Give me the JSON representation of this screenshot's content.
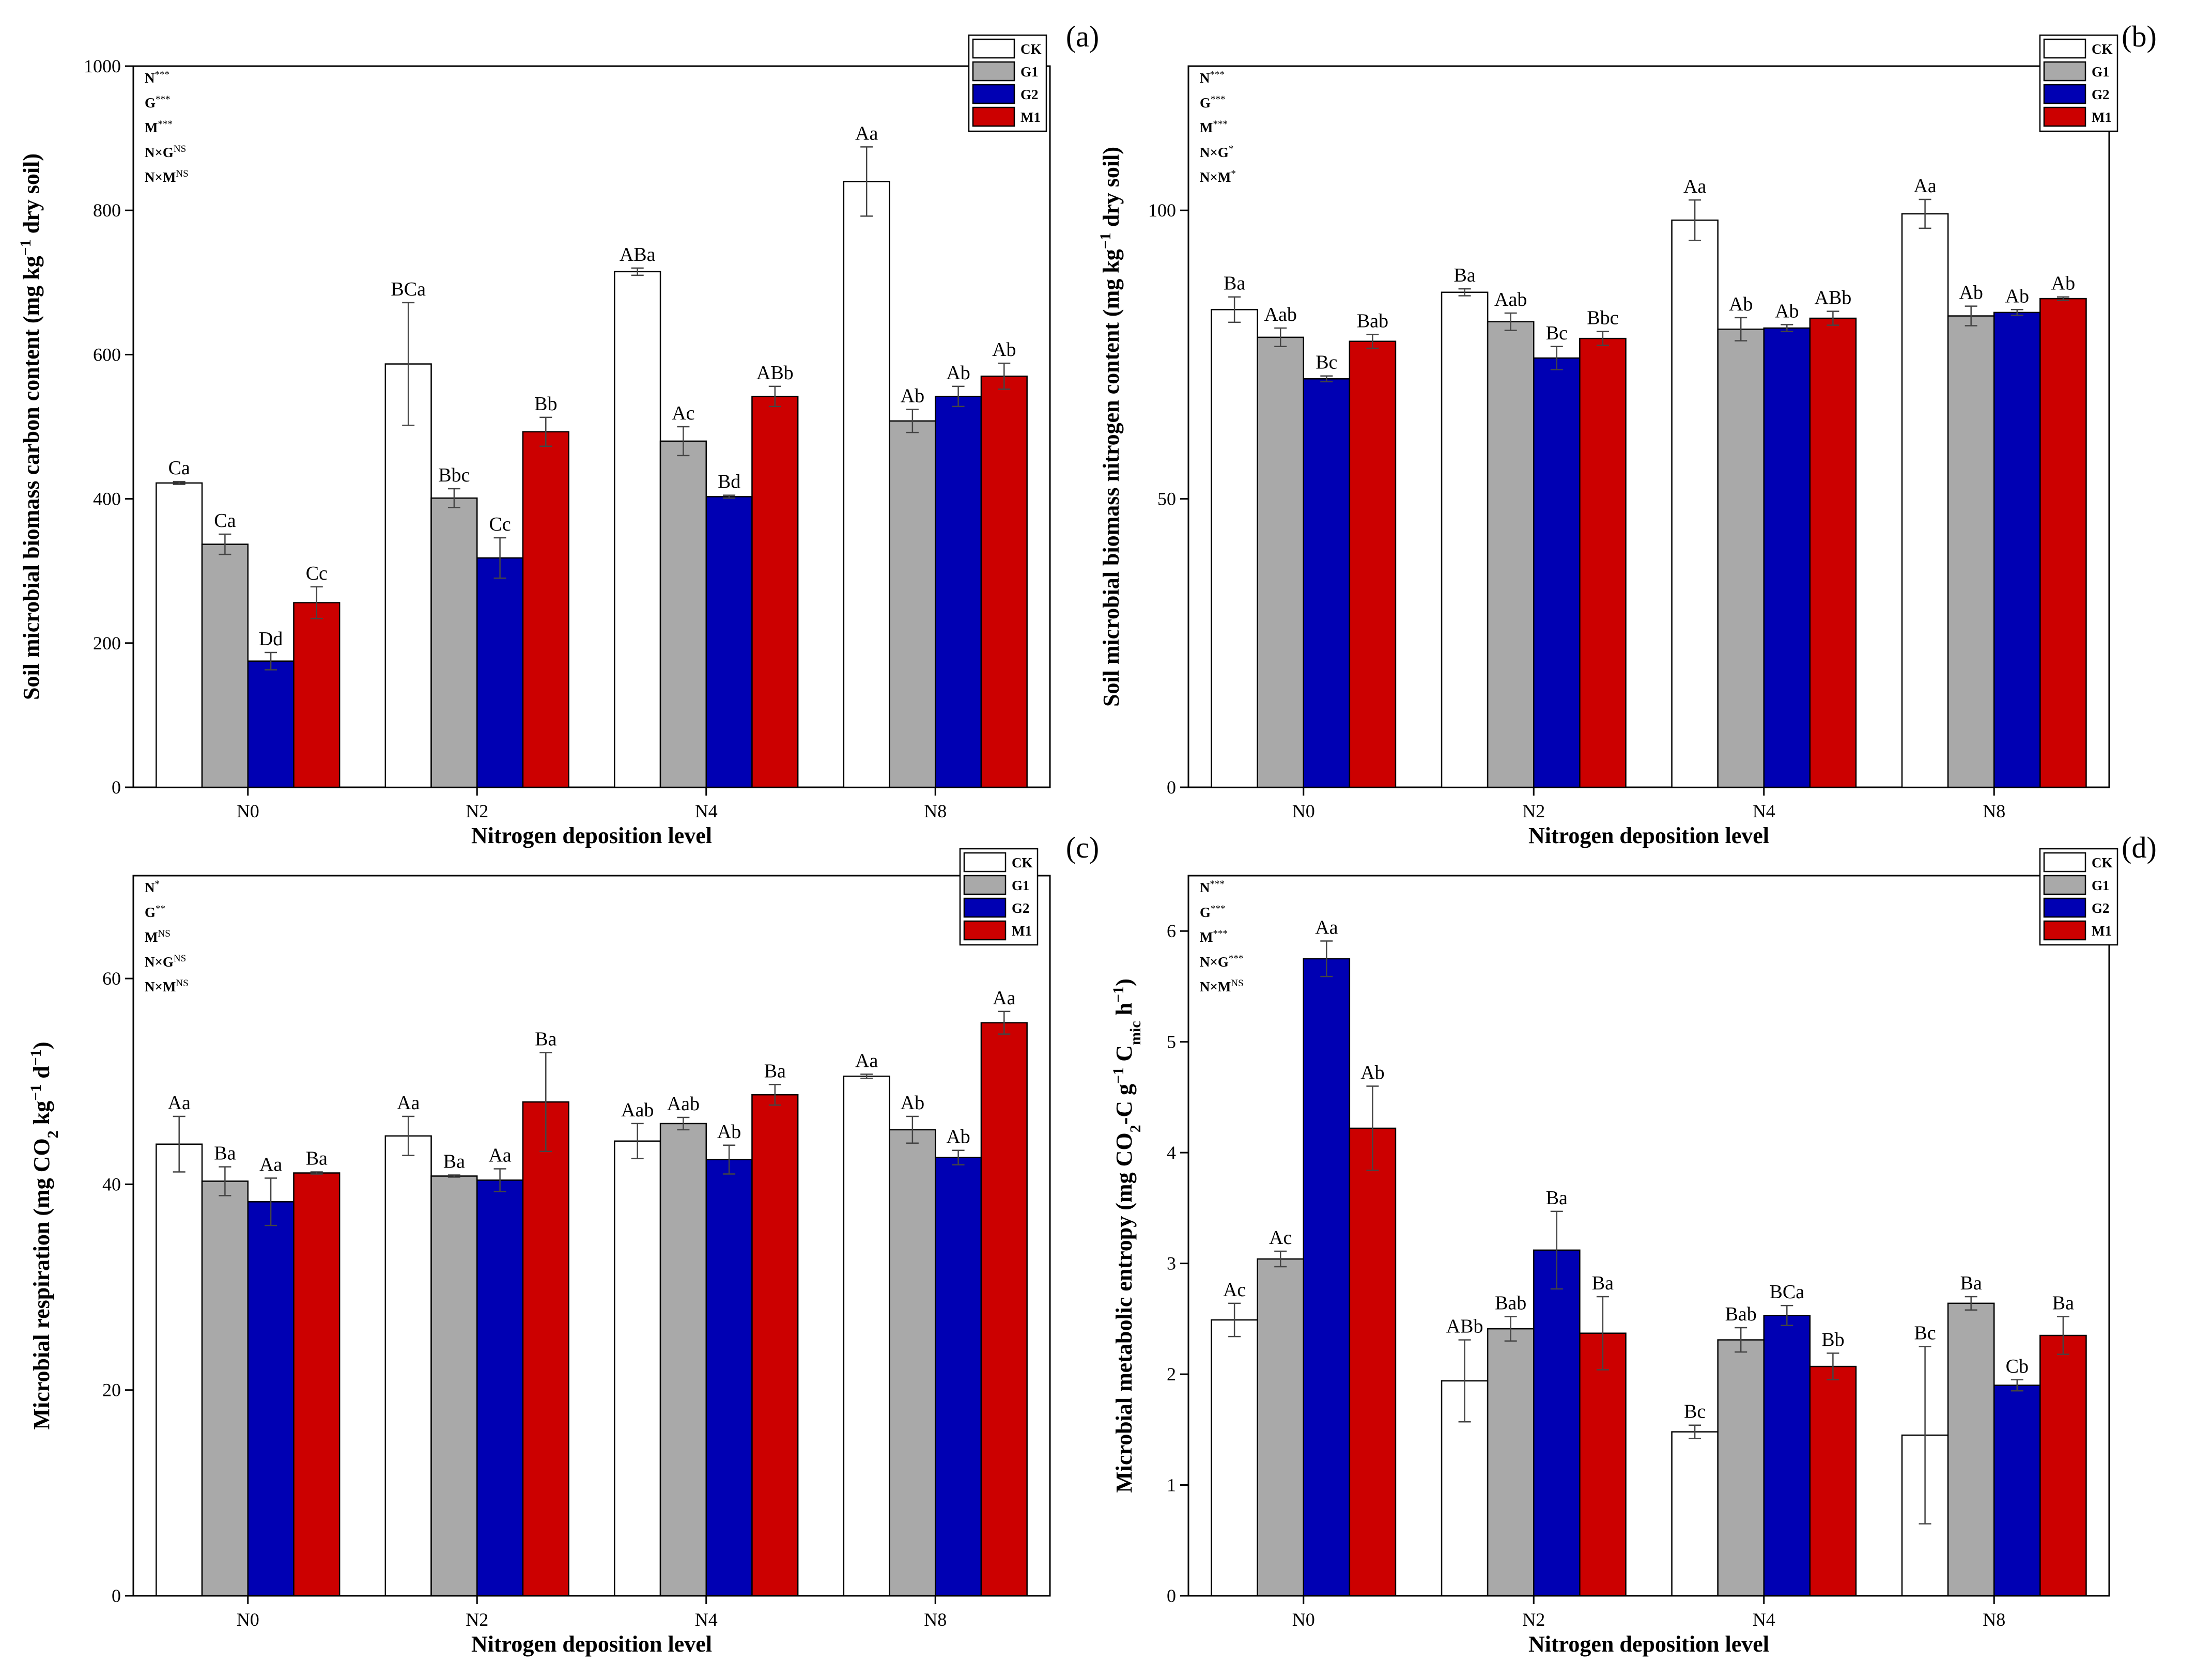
{
  "colors": {
    "CK": "#ffffff",
    "G1": "#a9a9a9",
    "G2": "#0000b3",
    "M1": "#cc0000"
  },
  "legend": [
    "CK",
    "G1",
    "G2",
    "M1"
  ],
  "chart_data": [
    {
      "panel": "(a)",
      "type": "bar",
      "xlabel": "Nitrogen deposition level",
      "ylabel": "Soil microbial biomass carbon content (mg kg−1 dry soil)",
      "ylim": [
        0,
        1000
      ],
      "yticks": [
        0,
        200,
        400,
        600,
        800,
        1000
      ],
      "categories": [
        "N0",
        "N2",
        "N4",
        "N8"
      ],
      "stats": [
        {
          "term": "N",
          "sig": "***"
        },
        {
          "term": "G",
          "sig": "***"
        },
        {
          "term": "M",
          "sig": "***"
        },
        {
          "term": "N×G",
          "sig": "NS"
        },
        {
          "term": "N×M",
          "sig": "NS"
        }
      ],
      "series": [
        {
          "name": "CK",
          "values": [
            422,
            587,
            715,
            840
          ],
          "errors": [
            2,
            85,
            5,
            48
          ],
          "letters": [
            "Ca",
            "BCa",
            "ABa",
            "Aa"
          ]
        },
        {
          "name": "G1",
          "values": [
            337,
            401,
            480,
            508
          ],
          "errors": [
            14,
            13,
            20,
            16
          ],
          "letters": [
            "Ca",
            "Bbc",
            "Ac",
            "Ab"
          ]
        },
        {
          "name": "G2",
          "values": [
            175,
            318,
            403,
            542
          ],
          "errors": [
            12,
            28,
            2,
            14
          ],
          "letters": [
            "Dd",
            "Cc",
            "Bd",
            "Ab"
          ]
        },
        {
          "name": "M1",
          "values": [
            256,
            493,
            542,
            570
          ],
          "errors": [
            22,
            20,
            14,
            18
          ],
          "letters": [
            "Cc",
            "Bb",
            "ABb",
            "Ab"
          ]
        }
      ]
    },
    {
      "panel": "(b)",
      "type": "bar",
      "xlabel": "Nitrogen deposition level",
      "ylabel": "Soil microbial biomass nitrogen content (mg kg−1 dry soil)",
      "ylim": [
        0,
        125
      ],
      "yticks": [
        0,
        50,
        100
      ],
      "categories": [
        "N0",
        "N2",
        "N4",
        "N8"
      ],
      "stats": [
        {
          "term": "N",
          "sig": "***"
        },
        {
          "term": "G",
          "sig": "***"
        },
        {
          "term": "M",
          "sig": "***"
        },
        {
          "term": "N×G",
          "sig": "*"
        },
        {
          "term": "N×M",
          "sig": "*"
        }
      ],
      "series": [
        {
          "name": "CK",
          "values": [
            82.8,
            85.8,
            98.3,
            99.4
          ],
          "errors": [
            2.2,
            0.6,
            3.5,
            2.5
          ],
          "letters": [
            "Ba",
            "Ba",
            "Aa",
            "Aa"
          ]
        },
        {
          "name": "G1",
          "values": [
            78.0,
            80.7,
            79.4,
            81.7
          ],
          "errors": [
            1.6,
            1.5,
            2.0,
            1.7
          ],
          "letters": [
            "Aab",
            "Aab",
            "Ab",
            "Ab"
          ]
        },
        {
          "name": "G2",
          "values": [
            70.8,
            74.4,
            79.6,
            82.3
          ],
          "errors": [
            0.5,
            2.0,
            0.6,
            0.5
          ],
          "letters": [
            "Bc",
            "Bc",
            "Ab",
            "Ab"
          ]
        },
        {
          "name": "M1",
          "values": [
            77.3,
            77.8,
            81.3,
            84.7
          ],
          "errors": [
            1.2,
            1.2,
            1.2,
            0.3
          ],
          "letters": [
            "Bab",
            "Bbc",
            "ABb",
            "Ab"
          ]
        }
      ]
    },
    {
      "panel": "(c)",
      "type": "bar",
      "xlabel": "Nitrogen deposition level",
      "ylabel": "Microbial respiration (mg CO2 kg−1 d−1)",
      "ylim": [
        0,
        70
      ],
      "yticks": [
        0,
        20,
        40,
        60
      ],
      "categories": [
        "N0",
        "N2",
        "N4",
        "N8"
      ],
      "stats": [
        {
          "term": "N",
          "sig": "*"
        },
        {
          "term": "G",
          "sig": "**"
        },
        {
          "term": "M",
          "sig": "NS"
        },
        {
          "term": "N×G",
          "sig": "NS"
        },
        {
          "term": "N×M",
          "sig": "NS"
        }
      ],
      "series": [
        {
          "name": "CK",
          "values": [
            43.9,
            44.7,
            44.2,
            50.5
          ],
          "errors": [
            2.7,
            1.9,
            1.7,
            0.2
          ],
          "letters": [
            "Aa",
            "Aa",
            "Aab",
            "Aa"
          ]
        },
        {
          "name": "G1",
          "values": [
            40.3,
            40.8,
            45.9,
            45.3
          ],
          "errors": [
            1.4,
            0.1,
            0.6,
            1.3
          ],
          "letters": [
            "Ba",
            "Ba",
            "Aab",
            "Ab"
          ]
        },
        {
          "name": "G2",
          "values": [
            38.3,
            40.4,
            42.4,
            42.6
          ],
          "errors": [
            2.3,
            1.1,
            1.4,
            0.7
          ],
          "letters": [
            "Aa",
            "Aa",
            "Ab",
            "Ab"
          ]
        },
        {
          "name": "M1",
          "values": [
            41.1,
            48.0,
            48.7,
            55.7
          ],
          "errors": [
            0.1,
            4.8,
            1.0,
            1.1
          ],
          "letters": [
            "Ba",
            "Ba",
            "Ba",
            "Aa"
          ]
        }
      ]
    },
    {
      "panel": "(d)",
      "type": "bar",
      "xlabel": "Nitrogen deposition level",
      "ylabel": "Microbial metabolic entropy (mg CO2-C g−1 Cmic h−1)",
      "ylim": [
        0,
        6.5
      ],
      "yticks": [
        0,
        1,
        2,
        3,
        4,
        5,
        6
      ],
      "categories": [
        "N0",
        "N2",
        "N4",
        "N8"
      ],
      "stats": [
        {
          "term": "N",
          "sig": "***"
        },
        {
          "term": "G",
          "sig": "***"
        },
        {
          "term": "M",
          "sig": "***"
        },
        {
          "term": "N×G",
          "sig": "***"
        },
        {
          "term": "N×M",
          "sig": "NS"
        }
      ],
      "series": [
        {
          "name": "CK",
          "values": [
            2.49,
            1.94,
            1.48,
            1.45
          ],
          "errors": [
            0.15,
            0.37,
            0.06,
            0.8
          ],
          "letters": [
            "Ac",
            "ABb",
            "Bc",
            "Bc"
          ]
        },
        {
          "name": "G1",
          "values": [
            3.04,
            2.41,
            2.31,
            2.64
          ],
          "errors": [
            0.07,
            0.11,
            0.11,
            0.06
          ],
          "letters": [
            "Ac",
            "Bab",
            "Bab",
            "Ba"
          ]
        },
        {
          "name": "G2",
          "values": [
            5.75,
            3.12,
            2.53,
            1.9
          ],
          "errors": [
            0.16,
            0.35,
            0.09,
            0.05
          ],
          "letters": [
            "Aa",
            "Ba",
            "BCa",
            "Cb"
          ]
        },
        {
          "name": "M1",
          "values": [
            4.22,
            2.37,
            2.07,
            2.35
          ],
          "errors": [
            0.38,
            0.33,
            0.12,
            0.17
          ],
          "letters": [
            "Ab",
            "Ba",
            "Bb",
            "Ba"
          ]
        }
      ]
    }
  ]
}
